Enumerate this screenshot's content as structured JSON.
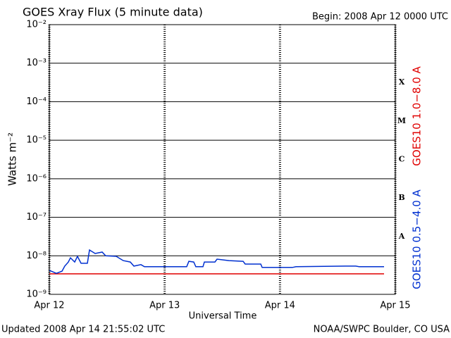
{
  "chart_data": {
    "type": "line",
    "title": "GOES Xray Flux (5 minute data)",
    "subtitle": "Begin:  2008 Apr 12 0000 UTC",
    "y_label": "Watts m⁻²",
    "x_label": "Universal Time",
    "footer_left": "Updated 2008 Apr 14 21:55:02 UTC",
    "footer_right": "NOAA/SWPC Boulder, CO USA",
    "log_y": true,
    "grid": true,
    "xlim": [
      0,
      3
    ],
    "xticks": [
      {
        "value": 0,
        "label": "Apr 12"
      },
      {
        "value": 1,
        "label": "Apr 13"
      },
      {
        "value": 2,
        "label": "Apr 14"
      },
      {
        "value": 3,
        "label": "Apr 15"
      }
    ],
    "ylim": [
      1e-09,
      0.01
    ],
    "yticks": [
      {
        "value": 1e-09,
        "label": "10⁻⁹"
      },
      {
        "value": 1e-08,
        "label": "10⁻⁸"
      },
      {
        "value": 1e-07,
        "label": "10⁻⁷"
      },
      {
        "value": 1e-06,
        "label": "10⁻⁶"
      },
      {
        "value": 1e-05,
        "label": "10⁻⁵"
      },
      {
        "value": 0.0001,
        "label": "10⁻⁴"
      },
      {
        "value": 0.001,
        "label": "10⁻³"
      },
      {
        "value": 0.01,
        "label": "10⁻²"
      }
    ],
    "flare_classes": [
      {
        "label": "X",
        "value": 0.0001
      },
      {
        "label": "M",
        "value": 1e-05
      },
      {
        "label": "C",
        "value": 1e-06
      },
      {
        "label": "B",
        "value": 1e-07
      },
      {
        "label": "A",
        "value": 1e-08
      }
    ],
    "series": [
      {
        "name": "GOES10 1.0−8.0 A",
        "color": "#e00000",
        "x": [
          0,
          2.902
        ],
        "values": [
          3.4e-09,
          3.4e-09
        ]
      },
      {
        "name": "GOES10 0.5−4.0 A",
        "color": "#0030d0",
        "x": [
          0,
          0.061,
          0.11,
          0.134,
          0.165,
          0.183,
          0.22,
          0.244,
          0.275,
          0.33,
          0.348,
          0.397,
          0.458,
          0.489,
          0.58,
          0.641,
          0.702,
          0.733,
          0.794,
          0.825,
          1.191,
          1.21,
          1.252,
          1.27,
          1.332,
          1.344,
          1.436,
          1.454,
          1.558,
          1.68,
          1.698,
          1.833,
          1.845,
          2.108,
          2.138,
          2.566,
          2.657,
          2.688,
          2.902
        ],
        "values": [
          4.2e-09,
          3.5e-09,
          4e-09,
          5.4e-09,
          6.9e-09,
          8.9e-09,
          6.9e-09,
          9.7e-09,
          6.4e-09,
          6.4e-09,
          1.42e-08,
          1.15e-08,
          1.25e-08,
          1e-08,
          9.7e-09,
          7.5e-09,
          6.9e-09,
          5.4e-09,
          5.9e-09,
          5.2e-09,
          5.2e-09,
          7.2e-09,
          6.9e-09,
          5.2e-09,
          5.2e-09,
          6.9e-09,
          6.9e-09,
          8.2e-09,
          7.5e-09,
          7.2e-09,
          6.1e-09,
          6.1e-09,
          5e-09,
          5e-09,
          5.2e-09,
          5.4e-09,
          5.4e-09,
          5.2e-09,
          5.2e-09
        ]
      }
    ]
  }
}
